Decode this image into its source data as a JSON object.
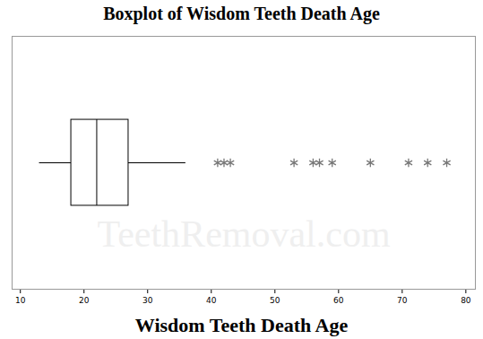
{
  "chart_data": {
    "type": "box",
    "title": "Boxplot of Wisdom Teeth Death Age",
    "x_label": "Wisdom Teeth Death Age",
    "annotation": "TeethRemoval.com",
    "box": {
      "whisker_low": 13,
      "q1": 18,
      "median": 22,
      "q3": 27,
      "whisker_high": 36
    },
    "outliers": [
      41,
      42,
      43,
      53,
      56,
      57,
      59,
      65,
      71,
      74,
      77
    ],
    "marker": "asterisk",
    "color": "#000000",
    "outlier_color": "#777777",
    "xlim": [
      8.7,
      81.5
    ],
    "xticks": [
      10,
      20,
      30,
      40,
      50,
      60,
      70,
      80
    ]
  }
}
